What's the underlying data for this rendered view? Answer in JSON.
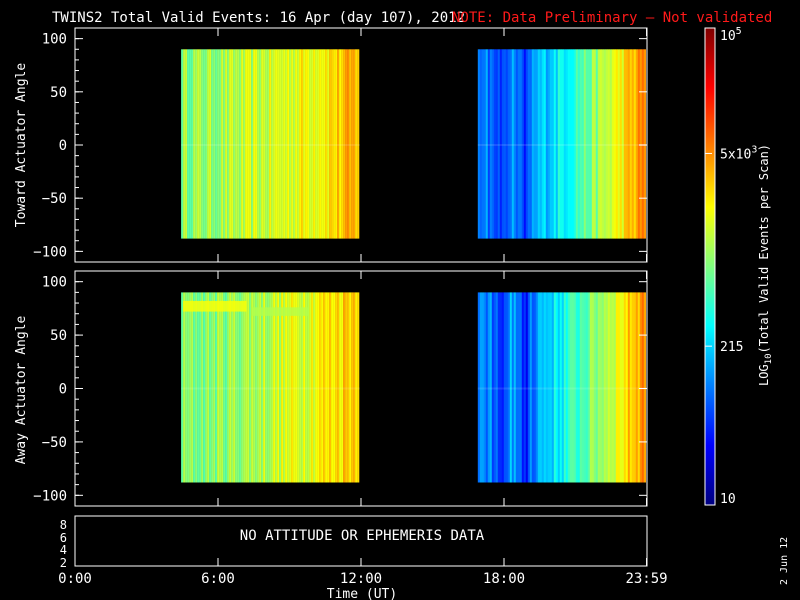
{
  "header": {
    "title": "TWINS2 Total Valid Events: 16 Apr (day 107), 2012",
    "note": "NOTE: Data Preliminary – Not validated",
    "note_color": "#ff1a1a"
  },
  "chart_data": [
    {
      "type": "heatmap",
      "ylabel": "Toward Actuator Angle",
      "ylim": [
        -110,
        110
      ],
      "yticks": [
        "100",
        "50",
        "0",
        "−50",
        "−100"
      ],
      "angle_range": [
        -88,
        90
      ],
      "segments": [
        {
          "start_hour": 4.45,
          "end_hour": 11.95,
          "level_start": 0.52,
          "level_end": 0.7
        },
        {
          "start_hour": 16.9,
          "end_hour": 23.98,
          "level_start": 0.2,
          "level_end": 0.76
        }
      ]
    },
    {
      "type": "heatmap",
      "ylabel": "Away Actuator Angle",
      "ylim": [
        -110,
        110
      ],
      "yticks": [
        "100",
        "50",
        "0",
        "−50",
        "−100"
      ],
      "angle_range": [
        -88,
        90
      ],
      "segments": [
        {
          "start_hour": 4.45,
          "end_hour": 11.95,
          "level_start": 0.5,
          "level_end": 0.7
        },
        {
          "start_hour": 16.9,
          "end_hour": 23.98,
          "level_start": 0.2,
          "level_end": 0.76
        }
      ]
    }
  ],
  "ephemeris_panel": {
    "message": "NO ATTITUDE OR EPHEMERIS DATA",
    "yticks": [
      "8",
      "6",
      "4",
      "2"
    ]
  },
  "time_axis": {
    "ticks": [
      "0:00",
      "6:00",
      "12:00",
      "18:00",
      "23:59"
    ],
    "tick_hours": [
      0,
      6,
      12,
      18,
      23.98
    ],
    "label": "Time (UT)"
  },
  "colorbar": {
    "label_main": "LOG",
    "label_sub": "10",
    "label_rest": "(Total Valid Events per Scan)",
    "tick_labels": [
      "10",
      "215",
      "5x10",
      "10"
    ],
    "tick_superscripts": [
      "",
      "",
      "3",
      "5"
    ],
    "tick_levels": [
      0.0,
      0.333,
      0.737,
      1.0
    ]
  },
  "date_stamp": "2 Jun 12"
}
